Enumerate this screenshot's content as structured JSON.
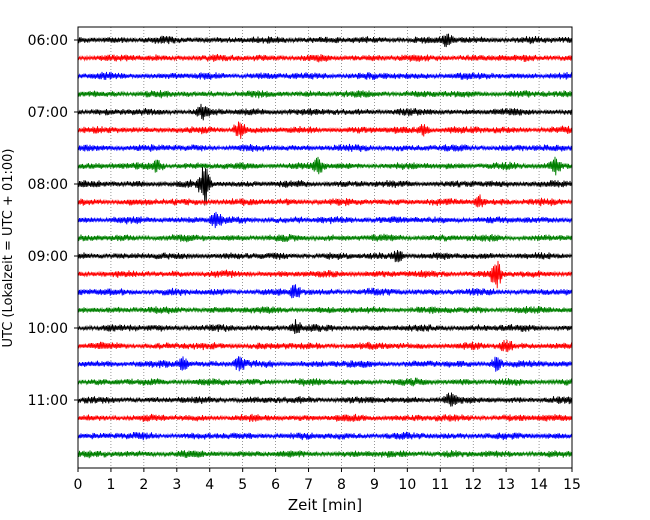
{
  "chart_data": {
    "type": "line",
    "title": "",
    "xlabel": "Zeit  [min]",
    "ylabel": "UTC (Lokalzeit = UTC + 01:00)",
    "xlim": [
      0,
      15
    ],
    "xticks": [
      0,
      1,
      2,
      3,
      4,
      5,
      6,
      7,
      8,
      9,
      10,
      11,
      12,
      13,
      14,
      15
    ],
    "ytick_labels": [
      "06:00",
      "07:00",
      "08:00",
      "09:00",
      "10:00",
      "11:00"
    ],
    "trace_minutes": 15,
    "grid": "vertical dotted",
    "colors": [
      "#000000",
      "#ff0000",
      "#0000ff",
      "#008000"
    ],
    "traces": [
      {
        "start": "06:00",
        "color": "#000000"
      },
      {
        "start": "06:15",
        "color": "#ff0000"
      },
      {
        "start": "06:30",
        "color": "#0000ff"
      },
      {
        "start": "06:45",
        "color": "#008000"
      },
      {
        "start": "07:00",
        "color": "#000000"
      },
      {
        "start": "07:15",
        "color": "#ff0000"
      },
      {
        "start": "07:30",
        "color": "#0000ff"
      },
      {
        "start": "07:45",
        "color": "#008000"
      },
      {
        "start": "08:00",
        "color": "#000000"
      },
      {
        "start": "08:15",
        "color": "#ff0000"
      },
      {
        "start": "08:30",
        "color": "#0000ff"
      },
      {
        "start": "08:45",
        "color": "#008000"
      },
      {
        "start": "09:00",
        "color": "#000000"
      },
      {
        "start": "09:15",
        "color": "#ff0000"
      },
      {
        "start": "09:30",
        "color": "#0000ff"
      },
      {
        "start": "09:45",
        "color": "#008000"
      },
      {
        "start": "10:00",
        "color": "#000000"
      },
      {
        "start": "10:15",
        "color": "#ff0000"
      },
      {
        "start": "10:30",
        "color": "#0000ff"
      },
      {
        "start": "10:45",
        "color": "#008000"
      },
      {
        "start": "11:00",
        "color": "#000000"
      },
      {
        "start": "11:15",
        "color": "#ff0000"
      },
      {
        "start": "11:30",
        "color": "#0000ff"
      },
      {
        "start": "11:45",
        "color": "#008000"
      }
    ],
    "events": [
      {
        "trace": "06:00",
        "minute": 11.2,
        "amplitude": 1.4
      },
      {
        "trace": "07:00",
        "minute": 3.8,
        "amplitude": 1.5
      },
      {
        "trace": "07:15",
        "minute": 4.9,
        "amplitude": 2.2
      },
      {
        "trace": "07:15",
        "minute": 10.5,
        "amplitude": 1.4
      },
      {
        "trace": "07:45",
        "minute": 2.4,
        "amplitude": 1.5
      },
      {
        "trace": "07:45",
        "minute": 7.3,
        "amplitude": 1.8
      },
      {
        "trace": "07:45",
        "minute": 14.5,
        "amplitude": 1.8
      },
      {
        "trace": "08:00",
        "minute": 3.85,
        "amplitude": 5.0
      },
      {
        "trace": "08:15",
        "minute": 12.2,
        "amplitude": 1.5
      },
      {
        "trace": "08:30",
        "minute": 4.2,
        "amplitude": 1.8
      },
      {
        "trace": "09:00",
        "minute": 9.7,
        "amplitude": 1.4
      },
      {
        "trace": "09:15",
        "minute": 12.7,
        "amplitude": 3.2
      },
      {
        "trace": "09:30",
        "minute": 6.6,
        "amplitude": 1.5
      },
      {
        "trace": "10:00",
        "minute": 6.6,
        "amplitude": 1.6
      },
      {
        "trace": "10:15",
        "minute": 13.0,
        "amplitude": 1.4
      },
      {
        "trace": "10:30",
        "minute": 3.2,
        "amplitude": 1.5
      },
      {
        "trace": "10:30",
        "minute": 4.9,
        "amplitude": 1.6
      },
      {
        "trace": "10:30",
        "minute": 12.7,
        "amplitude": 1.6
      },
      {
        "trace": "11:00",
        "minute": 11.3,
        "amplitude": 1.5
      }
    ]
  }
}
